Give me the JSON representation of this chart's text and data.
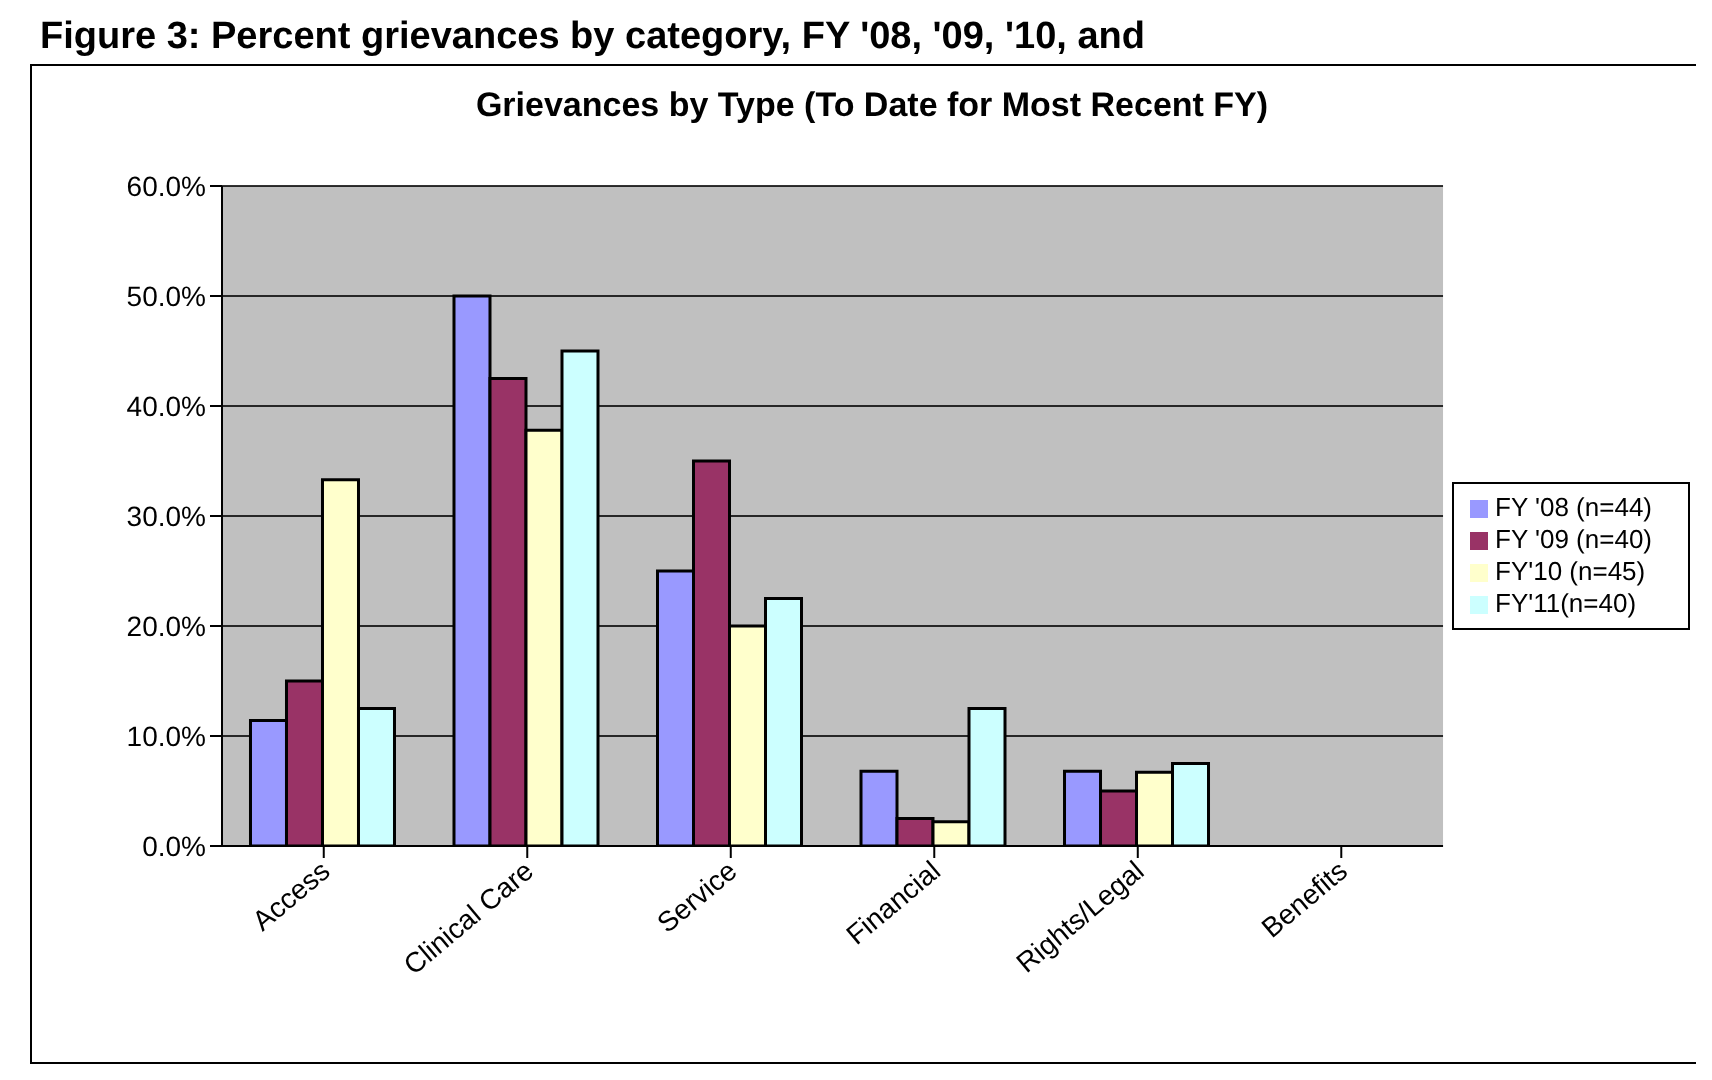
{
  "chart_data": {
    "type": "bar",
    "title": "Grievances by Type (To Date for Most Recent FY)",
    "annotations": [
      "Figure 3: Percent grievances by category, FY '08, '09, '10, and"
    ],
    "categories": [
      "Access",
      "Clinical Care",
      "Service",
      "Financial",
      "Rights/Legal",
      "Benefits"
    ],
    "series": [
      {
        "name": "FY '08 (n=44)",
        "color": "#9999ff",
        "values": [
          11.4,
          50.0,
          25.0,
          6.8,
          6.8,
          0
        ]
      },
      {
        "name": "FY '09 (n=40)",
        "color": "#993366",
        "values": [
          15.0,
          42.5,
          35.0,
          2.5,
          5.0,
          0
        ]
      },
      {
        "name": "FY'10 (n=45)",
        "color": "#ffffcc",
        "values": [
          33.3,
          37.8,
          20.0,
          2.2,
          6.7,
          0
        ]
      },
      {
        "name": "FY'11(n=40)",
        "color": "#ccffff",
        "values": [
          12.5,
          45.0,
          22.5,
          12.5,
          7.5,
          0
        ]
      }
    ],
    "ylim": [
      0,
      60
    ],
    "yticks": [
      {
        "value": 0,
        "label": "0.0%"
      },
      {
        "value": 10,
        "label": "10.0%"
      },
      {
        "value": 20,
        "label": "20.0%"
      },
      {
        "value": 30,
        "label": "30.0%"
      },
      {
        "value": 40,
        "label": "40.0%"
      },
      {
        "value": 50,
        "label": "50.0%"
      },
      {
        "value": 60,
        "label": "60.0%"
      }
    ],
    "grid": "y",
    "legend": "right"
  }
}
